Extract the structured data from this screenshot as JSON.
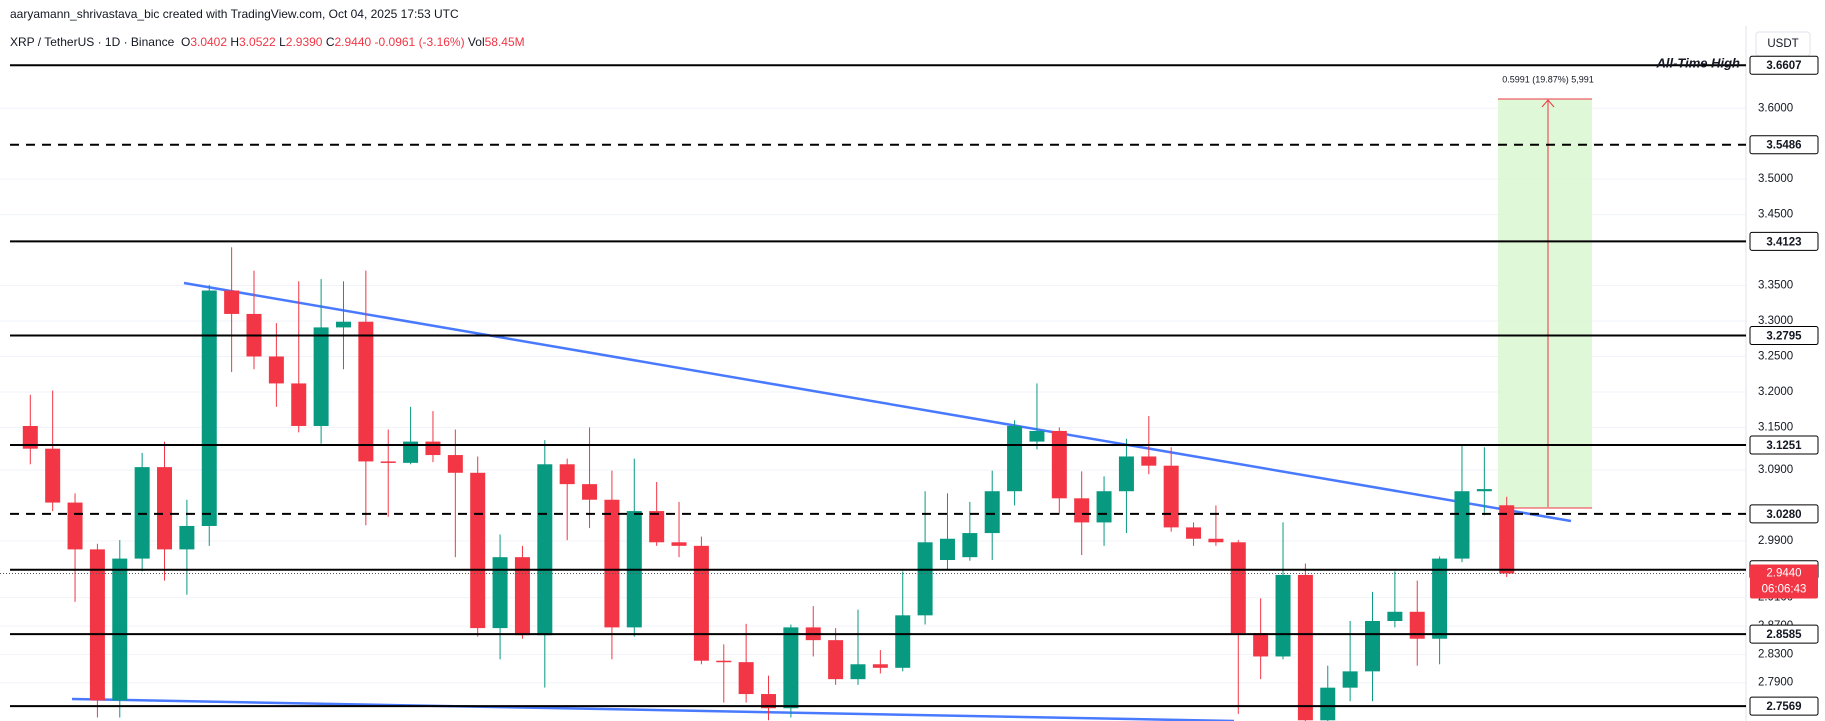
{
  "header": {
    "credit": "aaryamann_shrivastava_bic created with TradingView.com, Oct 04, 2025 17:53 UTC",
    "symbol": "XRP / TetherUS · 1D · Binance",
    "ohlc": [
      {
        "label": "O",
        "value": "3.0402"
      },
      {
        "label": "H",
        "value": "3.0522"
      },
      {
        "label": "L",
        "value": "2.9390"
      },
      {
        "label": "C",
        "value": "2.9440"
      }
    ],
    "change": "-0.0961 (-3.16%)",
    "volume_label": "Vol",
    "volume": "58.45M"
  },
  "chart_data": {
    "type": "candlestick",
    "currency": "USDT",
    "up_color": "#089981",
    "down_color": "#f23645",
    "open": [
      3.152,
      3.12,
      3.044,
      2.978,
      2.765,
      2.965,
      3.094,
      2.978,
      3.011,
      3.343,
      3.31,
      3.25,
      3.212,
      3.152,
      3.291,
      3.299,
      3.102,
      3.1,
      3.13,
      3.111,
      3.086,
      2.867,
      2.967,
      2.857,
      3.098,
      3.07,
      3.048,
      2.868,
      3.032,
      2.988,
      2.983,
      2.821,
      2.819,
      2.774,
      2.754,
      2.868,
      2.85,
      2.795,
      2.816,
      2.811,
      2.885,
      2.963,
      2.967,
      3.001,
      3.06,
      3.13,
      3.145,
      3.05,
      3.016,
      3.06,
      3.109,
      3.096,
      3.009,
      2.993,
      2.988,
      2.86,
      2.827,
      2.942,
      2.737,
      2.783,
      2.806,
      2.877,
      2.89,
      2.852,
      2.965,
      3.06,
      3.0402
    ],
    "high": [
      3.196,
      3.202,
      3.057,
      2.986,
      2.991,
      3.114,
      3.13,
      3.048,
      3.351,
      3.404,
      3.371,
      3.297,
      3.356,
      3.359,
      3.356,
      3.371,
      3.147,
      3.179,
      3.173,
      3.147,
      3.109,
      2.999,
      2.983,
      3.132,
      3.106,
      3.15,
      3.089,
      3.106,
      3.073,
      3.045,
      2.996,
      2.844,
      2.873,
      2.8,
      2.872,
      2.898,
      2.867,
      2.893,
      2.836,
      2.947,
      3.06,
      3.057,
      3.045,
      3.089,
      3.16,
      3.212,
      3.15,
      3.088,
      3.081,
      3.134,
      3.166,
      3.122,
      3.016,
      3.04,
      2.991,
      2.909,
      3.016,
      2.958,
      2.814,
      2.877,
      2.918,
      2.947,
      2.934,
      2.968,
      3.125,
      3.122,
      3.0522
    ],
    "low": [
      3.098,
      3.032,
      2.904,
      2.741,
      2.741,
      2.947,
      2.934,
      2.914,
      2.983,
      3.228,
      3.232,
      3.179,
      3.143,
      3.127,
      3.232,
      3.012,
      3.024,
      3.098,
      3.101,
      2.967,
      2.855,
      2.823,
      2.852,
      2.783,
      2.991,
      3.008,
      2.823,
      2.855,
      2.983,
      2.967,
      2.816,
      2.762,
      2.762,
      2.737,
      2.741,
      2.827,
      2.787,
      2.787,
      2.803,
      2.806,
      2.872,
      2.95,
      2.962,
      2.963,
      3.04,
      3.119,
      3.027,
      2.97,
      2.983,
      3.001,
      3.084,
      3.003,
      2.983,
      2.983,
      2.746,
      2.795,
      2.823,
      2.736,
      2.736,
      2.764,
      2.764,
      2.868,
      2.814,
      2.816,
      2.96,
      3.026,
      2.939
    ],
    "close": [
      3.12,
      3.044,
      2.978,
      2.765,
      2.965,
      3.094,
      2.978,
      3.011,
      3.343,
      3.31,
      3.25,
      3.212,
      3.152,
      3.291,
      3.299,
      3.102,
      3.1,
      3.13,
      3.111,
      3.086,
      2.867,
      2.967,
      2.857,
      3.098,
      3.07,
      3.048,
      2.868,
      3.032,
      2.988,
      2.983,
      2.821,
      2.819,
      2.774,
      2.754,
      2.868,
      2.85,
      2.795,
      2.816,
      2.811,
      2.885,
      2.988,
      2.993,
      3.001,
      3.06,
      3.152,
      3.145,
      3.05,
      3.016,
      3.06,
      3.109,
      3.096,
      3.009,
      2.993,
      2.988,
      2.86,
      2.827,
      2.942,
      2.737,
      2.783,
      2.806,
      2.877,
      2.89,
      2.852,
      2.965,
      3.06,
      3.063,
      2.944
    ],
    "ylim": [
      2.736,
      3.716
    ],
    "yticks": [
      {
        "value": 3.6,
        "label": "3.6000"
      },
      {
        "value": 3.5,
        "label": "3.5000"
      },
      {
        "value": 3.45,
        "label": "3.4500"
      },
      {
        "value": 3.35,
        "label": "3.3500"
      },
      {
        "value": 3.3,
        "label": "3.3000"
      },
      {
        "value": 3.25,
        "label": "3.2500"
      },
      {
        "value": 3.2,
        "label": "3.2000"
      },
      {
        "value": 3.15,
        "label": "3.1500"
      },
      {
        "value": 3.09,
        "label": "3.0900"
      },
      {
        "value": 2.99,
        "label": "2.9900"
      },
      {
        "value": 2.91,
        "label": "2.9100"
      },
      {
        "value": 2.87,
        "label": "2.8700"
      },
      {
        "value": 2.83,
        "label": "2.8300"
      },
      {
        "value": 2.79,
        "label": "2.7900"
      }
    ],
    "grid": true,
    "levels": [
      {
        "value": 3.6607,
        "style": "solid"
      },
      {
        "value": 3.5486,
        "style": "dashed"
      },
      {
        "value": 3.4123,
        "style": "solid"
      },
      {
        "value": 3.2795,
        "style": "solid"
      },
      {
        "value": 3.1251,
        "style": "solid"
      },
      {
        "value": 3.028,
        "label": "3.0280",
        "style": "dashed"
      },
      {
        "value": 2.9492,
        "style": "solid"
      },
      {
        "value": 2.8585,
        "style": "solid"
      },
      {
        "value": 2.7569,
        "style": "solid"
      }
    ],
    "current_price": {
      "value": 2.944,
      "label": "2.9440",
      "countdown": "06:06:43"
    },
    "annotations": {
      "all_time_high": "All-Time High",
      "position_label": "0.5991 (19.87%) 5,991"
    }
  }
}
